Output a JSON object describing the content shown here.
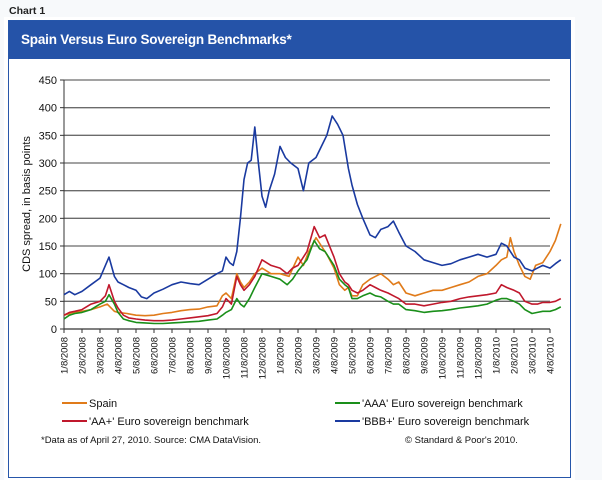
{
  "page": {
    "label": "Chart 1",
    "colors": {
      "header_bg": "#2553a8",
      "border": "#2656aa",
      "page_bg": "#f7f9fb"
    }
  },
  "chart_data": {
    "type": "line",
    "title": "Spain Versus Euro Sovereign Benchmarks*",
    "xlabel": "",
    "ylabel": "CDS spread, in basis points",
    "ylim": [
      0,
      450
    ],
    "yticks": [
      0,
      50,
      100,
      150,
      200,
      250,
      300,
      350,
      400,
      450
    ],
    "grid": true,
    "x_unit": "months since 1/8/2008",
    "xticks": [
      "1/8/2008",
      "2/8/2008",
      "3/8/2008",
      "4/8/2008",
      "5/8/2008",
      "6/8/2008",
      "7/8/2008",
      "8/8/2008",
      "9/8/2008",
      "10/8/2008",
      "11/8/2008",
      "12/8/2008",
      "1/8/2009",
      "2/8/2009",
      "3/8/2009",
      "4/8/2009",
      "5/8/2009",
      "6/8/2009",
      "7/8/2009",
      "8/8/2009",
      "9/8/2009",
      "10/8/2009",
      "11/8/2009",
      "12/8/2009",
      "1/8/2010",
      "2/8/2010",
      "3/8/2010",
      "4/8/2010"
    ],
    "xlim": [
      0,
      27.6
    ],
    "legend_position": "bottom",
    "series": [
      {
        "name": "Spain",
        "color": "#e07b1a",
        "points": [
          [
            0,
            25
          ],
          [
            0.5,
            30
          ],
          [
            1,
            32
          ],
          [
            1.5,
            35
          ],
          [
            2,
            40
          ],
          [
            2.4,
            45
          ],
          [
            2.8,
            32
          ],
          [
            3,
            30
          ],
          [
            3.5,
            28
          ],
          [
            4,
            25
          ],
          [
            4.5,
            24
          ],
          [
            5,
            25
          ],
          [
            5.5,
            28
          ],
          [
            6,
            30
          ],
          [
            6.5,
            33
          ],
          [
            7,
            35
          ],
          [
            7.5,
            36
          ],
          [
            8,
            40
          ],
          [
            8.5,
            42
          ],
          [
            8.8,
            60
          ],
          [
            9,
            65
          ],
          [
            9.3,
            55
          ],
          [
            9.6,
            100
          ],
          [
            9.8,
            85
          ],
          [
            10,
            75
          ],
          [
            10.3,
            85
          ],
          [
            10.6,
            100
          ],
          [
            11,
            110
          ],
          [
            11.5,
            100
          ],
          [
            12,
            100
          ],
          [
            12.5,
            95
          ],
          [
            13,
            130
          ],
          [
            13.3,
            115
          ],
          [
            13.6,
            140
          ],
          [
            14,
            165
          ],
          [
            14.3,
            150
          ],
          [
            14.6,
            135
          ],
          [
            15,
            110
          ],
          [
            15.3,
            80
          ],
          [
            15.6,
            70
          ],
          [
            15.8,
            75
          ],
          [
            16,
            60
          ],
          [
            16.3,
            60
          ],
          [
            16.6,
            80
          ],
          [
            17,
            90
          ],
          [
            17.3,
            95
          ],
          [
            17.6,
            100
          ],
          [
            18,
            90
          ],
          [
            18.3,
            80
          ],
          [
            18.6,
            85
          ],
          [
            19,
            65
          ],
          [
            19.5,
            60
          ],
          [
            20,
            65
          ],
          [
            20.5,
            70
          ],
          [
            21,
            70
          ],
          [
            21.5,
            75
          ],
          [
            22,
            80
          ],
          [
            22.5,
            85
          ],
          [
            23,
            95
          ],
          [
            23.5,
            100
          ],
          [
            24,
            115
          ],
          [
            24.3,
            125
          ],
          [
            24.6,
            130
          ],
          [
            24.8,
            165
          ],
          [
            25,
            140
          ],
          [
            25.3,
            115
          ],
          [
            25.6,
            95
          ],
          [
            25.9,
            90
          ],
          [
            26.2,
            115
          ],
          [
            26.6,
            120
          ],
          [
            27,
            140
          ],
          [
            27.3,
            160
          ],
          [
            27.6,
            190
          ]
        ]
      },
      {
        "name": "'AAA' Euro sovereign benchmark",
        "color": "#1a8f1a",
        "points": [
          [
            0,
            18
          ],
          [
            0.3,
            25
          ],
          [
            0.6,
            28
          ],
          [
            1,
            30
          ],
          [
            1.5,
            35
          ],
          [
            2,
            45
          ],
          [
            2.3,
            50
          ],
          [
            2.5,
            62
          ],
          [
            2.8,
            45
          ],
          [
            3,
            30
          ],
          [
            3.3,
            18
          ],
          [
            3.6,
            15
          ],
          [
            4,
            12
          ],
          [
            4.5,
            11
          ],
          [
            5,
            10
          ],
          [
            5.5,
            10
          ],
          [
            6,
            11
          ],
          [
            6.5,
            12
          ],
          [
            7,
            13
          ],
          [
            7.5,
            14
          ],
          [
            8,
            16
          ],
          [
            8.5,
            18
          ],
          [
            8.8,
            25
          ],
          [
            9,
            30
          ],
          [
            9.3,
            35
          ],
          [
            9.6,
            55
          ],
          [
            9.8,
            45
          ],
          [
            10,
            40
          ],
          [
            10.3,
            55
          ],
          [
            10.6,
            75
          ],
          [
            11,
            100
          ],
          [
            11.5,
            95
          ],
          [
            12,
            90
          ],
          [
            12.4,
            80
          ],
          [
            12.7,
            90
          ],
          [
            13,
            105
          ],
          [
            13.5,
            125
          ],
          [
            13.9,
            160
          ],
          [
            14.2,
            145
          ],
          [
            14.5,
            140
          ],
          [
            15,
            115
          ],
          [
            15.3,
            90
          ],
          [
            15.6,
            80
          ],
          [
            15.8,
            75
          ],
          [
            16,
            55
          ],
          [
            16.3,
            55
          ],
          [
            16.6,
            60
          ],
          [
            17,
            65
          ],
          [
            17.3,
            60
          ],
          [
            17.6,
            58
          ],
          [
            18,
            50
          ],
          [
            18.3,
            45
          ],
          [
            18.6,
            45
          ],
          [
            19,
            35
          ],
          [
            19.5,
            33
          ],
          [
            20,
            30
          ],
          [
            20.5,
            32
          ],
          [
            21,
            33
          ],
          [
            21.5,
            35
          ],
          [
            22,
            38
          ],
          [
            22.5,
            40
          ],
          [
            23,
            42
          ],
          [
            23.5,
            45
          ],
          [
            24,
            52
          ],
          [
            24.3,
            55
          ],
          [
            24.6,
            55
          ],
          [
            25,
            50
          ],
          [
            25.3,
            45
          ],
          [
            25.6,
            35
          ],
          [
            26,
            28
          ],
          [
            26.3,
            30
          ],
          [
            26.6,
            32
          ],
          [
            27,
            32
          ],
          [
            27.3,
            35
          ],
          [
            27.6,
            40
          ]
        ]
      },
      {
        "name": "'AA+' Euro sovereign benchmark",
        "color": "#c0182c",
        "points": [
          [
            0,
            25
          ],
          [
            0.3,
            30
          ],
          [
            0.6,
            32
          ],
          [
            1,
            35
          ],
          [
            1.5,
            45
          ],
          [
            2,
            50
          ],
          [
            2.3,
            60
          ],
          [
            2.5,
            80
          ],
          [
            2.8,
            50
          ],
          [
            3,
            38
          ],
          [
            3.3,
            25
          ],
          [
            3.6,
            20
          ],
          [
            4,
            18
          ],
          [
            4.5,
            16
          ],
          [
            5,
            15
          ],
          [
            5.5,
            15
          ],
          [
            6,
            16
          ],
          [
            6.5,
            18
          ],
          [
            7,
            20
          ],
          [
            7.5,
            22
          ],
          [
            8,
            24
          ],
          [
            8.5,
            28
          ],
          [
            8.8,
            40
          ],
          [
            9,
            55
          ],
          [
            9.3,
            45
          ],
          [
            9.6,
            95
          ],
          [
            9.8,
            80
          ],
          [
            10,
            70
          ],
          [
            10.3,
            80
          ],
          [
            10.6,
            95
          ],
          [
            11,
            125
          ],
          [
            11.5,
            115
          ],
          [
            12,
            110
          ],
          [
            12.4,
            100
          ],
          [
            12.7,
            110
          ],
          [
            13,
            115
          ],
          [
            13.5,
            140
          ],
          [
            13.9,
            185
          ],
          [
            14.2,
            165
          ],
          [
            14.5,
            170
          ],
          [
            15,
            130
          ],
          [
            15.3,
            100
          ],
          [
            15.6,
            85
          ],
          [
            15.8,
            80
          ],
          [
            16,
            70
          ],
          [
            16.3,
            65
          ],
          [
            16.6,
            70
          ],
          [
            17,
            80
          ],
          [
            17.3,
            75
          ],
          [
            17.6,
            70
          ],
          [
            18,
            65
          ],
          [
            18.3,
            60
          ],
          [
            18.6,
            55
          ],
          [
            19,
            45
          ],
          [
            19.5,
            45
          ],
          [
            20,
            42
          ],
          [
            20.5,
            45
          ],
          [
            21,
            48
          ],
          [
            21.5,
            50
          ],
          [
            22,
            55
          ],
          [
            22.5,
            58
          ],
          [
            23,
            60
          ],
          [
            23.5,
            62
          ],
          [
            24,
            65
          ],
          [
            24.3,
            80
          ],
          [
            24.6,
            75
          ],
          [
            25,
            70
          ],
          [
            25.3,
            65
          ],
          [
            25.6,
            50
          ],
          [
            26,
            45
          ],
          [
            26.3,
            45
          ],
          [
            26.6,
            48
          ],
          [
            27,
            48
          ],
          [
            27.3,
            50
          ],
          [
            27.6,
            55
          ]
        ]
      },
      {
        "name": "'BBB+' Euro sovereign benchmark",
        "color": "#1a3aa0",
        "points": [
          [
            0,
            62
          ],
          [
            0.3,
            68
          ],
          [
            0.6,
            62
          ],
          [
            1,
            68
          ],
          [
            1.5,
            80
          ],
          [
            2,
            92
          ],
          [
            2.3,
            115
          ],
          [
            2.5,
            130
          ],
          [
            2.8,
            95
          ],
          [
            3,
            85
          ],
          [
            3.3,
            80
          ],
          [
            3.6,
            75
          ],
          [
            4,
            70
          ],
          [
            4.3,
            58
          ],
          [
            4.6,
            55
          ],
          [
            5,
            65
          ],
          [
            5.5,
            72
          ],
          [
            6,
            80
          ],
          [
            6.5,
            85
          ],
          [
            7,
            82
          ],
          [
            7.5,
            80
          ],
          [
            8,
            90
          ],
          [
            8.5,
            100
          ],
          [
            8.8,
            105
          ],
          [
            9,
            130
          ],
          [
            9.2,
            120
          ],
          [
            9.4,
            115
          ],
          [
            9.6,
            140
          ],
          [
            9.8,
            200
          ],
          [
            10,
            270
          ],
          [
            10.2,
            300
          ],
          [
            10.4,
            305
          ],
          [
            10.6,
            365
          ],
          [
            10.8,
            300
          ],
          [
            11,
            240
          ],
          [
            11.2,
            220
          ],
          [
            11.4,
            250
          ],
          [
            11.7,
            280
          ],
          [
            12,
            330
          ],
          [
            12.3,
            310
          ],
          [
            12.6,
            300
          ],
          [
            13,
            290
          ],
          [
            13.3,
            250
          ],
          [
            13.6,
            300
          ],
          [
            14,
            310
          ],
          [
            14.3,
            330
          ],
          [
            14.6,
            350
          ],
          [
            14.9,
            385
          ],
          [
            15.2,
            370
          ],
          [
            15.5,
            350
          ],
          [
            15.8,
            290
          ],
          [
            16,
            260
          ],
          [
            16.3,
            225
          ],
          [
            16.6,
            200
          ],
          [
            17,
            170
          ],
          [
            17.3,
            165
          ],
          [
            17.6,
            180
          ],
          [
            18,
            185
          ],
          [
            18.3,
            195
          ],
          [
            18.6,
            175
          ],
          [
            19,
            150
          ],
          [
            19.5,
            140
          ],
          [
            20,
            125
          ],
          [
            20.5,
            120
          ],
          [
            21,
            115
          ],
          [
            21.5,
            118
          ],
          [
            22,
            125
          ],
          [
            22.5,
            130
          ],
          [
            23,
            135
          ],
          [
            23.5,
            130
          ],
          [
            24,
            135
          ],
          [
            24.3,
            155
          ],
          [
            24.6,
            150
          ],
          [
            25,
            130
          ],
          [
            25.3,
            125
          ],
          [
            25.6,
            110
          ],
          [
            26,
            105
          ],
          [
            26.3,
            110
          ],
          [
            26.6,
            115
          ],
          [
            27,
            110
          ],
          [
            27.3,
            118
          ],
          [
            27.6,
            125
          ]
        ]
      }
    ],
    "annotations": {
      "footnote": "*Data as of April 27, 2010. Source: CMA DataVision.",
      "copyright": "© Standard & Poor's 2010."
    }
  }
}
